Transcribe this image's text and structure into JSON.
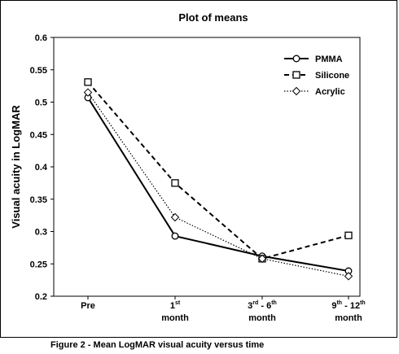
{
  "chart_data": {
    "type": "line",
    "title": "Plot of means",
    "xlabel": "",
    "ylabel": "Visual acuity in LogMAR",
    "ylim": [
      0.2,
      0.6
    ],
    "yticks": [
      "0.2",
      "0.25",
      "0.3",
      "0.35",
      "0.4",
      "0.45",
      "0.5",
      "0.55",
      "0.6"
    ],
    "categories": [
      {
        "main": "Pre",
        "sup": "",
        "line2": ""
      },
      {
        "main": "1",
        "sup": "st",
        "line2": "month"
      },
      {
        "main": "3rd - 6",
        "sup": "th",
        "line2": "month",
        "pre": "3",
        "presup": "rd",
        "mid": " - 6"
      },
      {
        "main": "9th - 12",
        "sup": "th",
        "line2": "month",
        "pre": "9",
        "presup": "th",
        "mid": " - 12"
      }
    ],
    "series": [
      {
        "name": "PMMA",
        "marker": "circle",
        "dash": "solid",
        "values": [
          0.507,
          0.293,
          0.262,
          0.239
        ]
      },
      {
        "name": "Silicone",
        "marker": "square",
        "dash": "dashed",
        "values": [
          0.531,
          0.375,
          0.258,
          0.294
        ]
      },
      {
        "name": "Acrylic",
        "marker": "diamond",
        "dash": "dotted",
        "values": [
          0.515,
          0.322,
          0.258,
          0.231
        ]
      }
    ],
    "legend_position": "top-right",
    "grid": false
  },
  "caption": "Figure 2 - Mean LogMAR visual acuity versus time"
}
